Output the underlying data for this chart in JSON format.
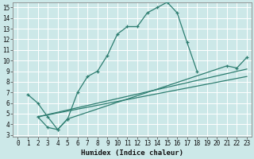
{
  "xlabel": "Humidex (Indice chaleur)",
  "bg_color": "#cce8e8",
  "line_color": "#2d7d70",
  "grid_color": "#ffffff",
  "xlim": [
    -0.5,
    23.5
  ],
  "ylim": [
    2.8,
    15.5
  ],
  "xticks": [
    0,
    1,
    2,
    3,
    4,
    5,
    6,
    7,
    8,
    9,
    10,
    11,
    12,
    13,
    14,
    15,
    16,
    17,
    18,
    19,
    20,
    21,
    22,
    23
  ],
  "yticks": [
    3,
    4,
    5,
    6,
    7,
    8,
    9,
    10,
    11,
    12,
    13,
    14,
    15
  ],
  "curve1_x": [
    1,
    2,
    3,
    4,
    5,
    6,
    7,
    8,
    9,
    10,
    11,
    12,
    13,
    14,
    15,
    16,
    17,
    18
  ],
  "curve1_y": [
    6.8,
    6.0,
    4.7,
    3.5,
    4.5,
    7.0,
    8.5,
    9.0,
    10.5,
    12.5,
    13.2,
    13.2,
    14.5,
    15.0,
    15.5,
    14.5,
    11.7,
    9.0
  ],
  "curve2_x": [
    2,
    3,
    4,
    5,
    21,
    22,
    23
  ],
  "curve2_y": [
    4.7,
    3.7,
    3.5,
    4.5,
    9.5,
    9.3,
    10.3
  ],
  "curve3_x": [
    2,
    23
  ],
  "curve3_y": [
    4.7,
    9.2
  ],
  "curve4_x": [
    2,
    23
  ],
  "curve4_y": [
    4.7,
    8.5
  ]
}
